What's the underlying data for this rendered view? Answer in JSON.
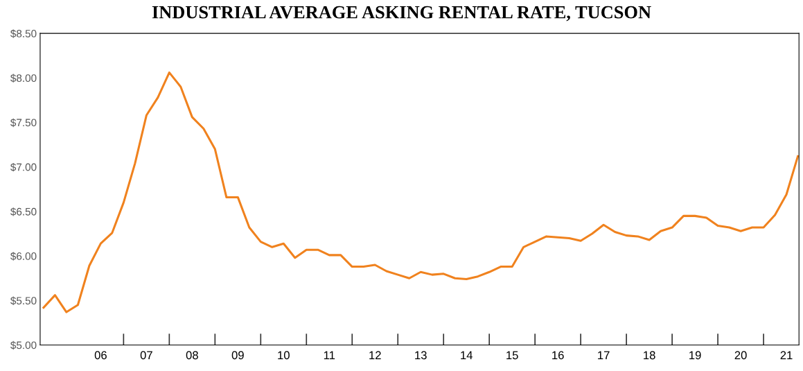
{
  "chart_data": {
    "type": "line",
    "title": "INDUSTRIAL AVERAGE ASKING RENTAL RATE, TUCSON",
    "categories": [
      null,
      null,
      null,
      null,
      null,
      "06",
      null,
      null,
      null,
      "07",
      null,
      null,
      null,
      "08",
      null,
      null,
      null,
      "09",
      null,
      null,
      null,
      "10",
      null,
      null,
      null,
      "11",
      null,
      null,
      null,
      "12",
      null,
      null,
      null,
      "13",
      null,
      null,
      null,
      "14",
      null,
      null,
      null,
      "15",
      null,
      null,
      null,
      "16",
      null,
      null,
      null,
      "17",
      null,
      null,
      null,
      "18",
      null,
      null,
      null,
      "19",
      null,
      null,
      null,
      "20",
      null,
      null,
      null,
      "21",
      null
    ],
    "series": [
      {
        "color": "#f0821e",
        "values": [
          5.42,
          5.56,
          5.37,
          5.45,
          5.89,
          6.14,
          6.26,
          6.6,
          7.04,
          7.58,
          7.78,
          8.06,
          7.9,
          7.56,
          7.43,
          7.2,
          6.66,
          6.66,
          6.32,
          6.16,
          6.1,
          6.14,
          5.98,
          6.07,
          6.07,
          6.01,
          6.01,
          5.88,
          5.88,
          5.9,
          5.83,
          5.79,
          5.75,
          5.82,
          5.79,
          5.8,
          5.75,
          5.74,
          5.77,
          5.82,
          5.88,
          5.88,
          6.1,
          6.16,
          6.22,
          6.21,
          6.2,
          6.17,
          6.25,
          6.35,
          6.27,
          6.23,
          6.22,
          6.18,
          6.28,
          6.32,
          6.45,
          6.45,
          6.43,
          6.34,
          6.32,
          6.28,
          6.32,
          6.32,
          6.46,
          6.69,
          7.12
        ]
      }
    ],
    "ylim": [
      5.0,
      8.5
    ],
    "yticks": [
      {
        "value": 5.0,
        "label": "$5.00"
      },
      {
        "value": 5.5,
        "label": "$5.50"
      },
      {
        "value": 6.0,
        "label": "$6.00"
      },
      {
        "value": 6.5,
        "label": "$6.50"
      },
      {
        "value": 7.0,
        "label": "$7.00"
      },
      {
        "value": 7.5,
        "label": "$7.50"
      },
      {
        "value": 8.0,
        "label": "$8.00"
      },
      {
        "value": 8.5,
        "label": "$8.50"
      }
    ],
    "grid": false,
    "marker": "none",
    "line_style": "solid",
    "legend": false
  }
}
